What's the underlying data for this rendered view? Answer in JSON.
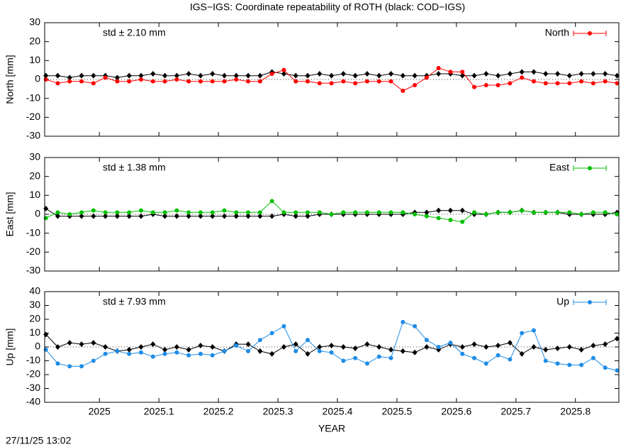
{
  "title": "IGS−IGS: Coordinate repeatability of ROTH (black: COD−IGS)",
  "timestamp": "27/11/25 13:02",
  "chart_data": [
    {
      "type": "line",
      "ylabel": "North [mm]",
      "annotation": "std ± 2.10 mm",
      "legend": "top right",
      "xlim": [
        2024.908,
        2025.873
      ],
      "ylim": [
        -30,
        30
      ],
      "yticks": [
        -30,
        -20,
        -10,
        0,
        10,
        20,
        30
      ],
      "x": [
        2024.91,
        2024.93,
        2024.95,
        2024.97,
        2024.99,
        2025.01,
        2025.03,
        2025.05,
        2025.07,
        2025.09,
        2025.11,
        2025.13,
        2025.15,
        2025.17,
        2025.19,
        2025.21,
        2025.23,
        2025.25,
        2025.27,
        2025.29,
        2025.31,
        2025.33,
        2025.35,
        2025.37,
        2025.39,
        2025.41,
        2025.43,
        2025.45,
        2025.47,
        2025.49,
        2025.51,
        2025.53,
        2025.55,
        2025.57,
        2025.59,
        2025.61,
        2025.63,
        2025.65,
        2025.67,
        2025.69,
        2025.71,
        2025.73,
        2025.75,
        2025.77,
        2025.79,
        2025.81,
        2025.83,
        2025.85,
        2025.87
      ],
      "series": [
        {
          "color": "#000000",
          "values": [
            2,
            2,
            1,
            2,
            2,
            2,
            1,
            2,
            2,
            3,
            2,
            2,
            3,
            2,
            3,
            2,
            2,
            2,
            2,
            4,
            3,
            2,
            2,
            3,
            2,
            3,
            2,
            3,
            2,
            3,
            2,
            2,
            2,
            3,
            3,
            2,
            2,
            3,
            2,
            3,
            4,
            4,
            3,
            3,
            2,
            3,
            3,
            3,
            2
          ]
        },
        {
          "name": "North",
          "color": "#ff0000",
          "values": [
            0,
            -2,
            -1,
            -1,
            -2,
            1,
            -1,
            -1,
            0,
            -1,
            -1,
            0,
            -1,
            -1,
            -1,
            -1,
            0,
            -1,
            -1,
            3,
            5,
            -1,
            -1,
            -2,
            -2,
            -1,
            -2,
            -1,
            -1,
            -1,
            -6,
            -3,
            1,
            6,
            4,
            4,
            -4,
            -3,
            -3,
            -2,
            1,
            -1,
            -2,
            -2,
            -2,
            -1,
            -2,
            -1,
            -2
          ]
        }
      ]
    },
    {
      "type": "line",
      "ylabel": "East [mm]",
      "annotation": "std ± 1.38 mm",
      "legend": "top right",
      "xlim": [
        2024.908,
        2025.873
      ],
      "ylim": [
        -30,
        30
      ],
      "yticks": [
        -30,
        -20,
        -10,
        0,
        10,
        20,
        30
      ],
      "x": [
        2024.91,
        2024.93,
        2024.95,
        2024.97,
        2024.99,
        2025.01,
        2025.03,
        2025.05,
        2025.07,
        2025.09,
        2025.11,
        2025.13,
        2025.15,
        2025.17,
        2025.19,
        2025.21,
        2025.23,
        2025.25,
        2025.27,
        2025.29,
        2025.31,
        2025.33,
        2025.35,
        2025.37,
        2025.39,
        2025.41,
        2025.43,
        2025.45,
        2025.47,
        2025.49,
        2025.51,
        2025.53,
        2025.55,
        2025.57,
        2025.59,
        2025.61,
        2025.63,
        2025.65,
        2025.67,
        2025.69,
        2025.71,
        2025.73,
        2025.75,
        2025.77,
        2025.79,
        2025.81,
        2025.83,
        2025.85,
        2025.87
      ],
      "series": [
        {
          "color": "#000000",
          "values": [
            3,
            -1,
            -1,
            -1,
            -1,
            -1,
            -1,
            -1,
            -1,
            0,
            -1,
            -1,
            -1,
            -1,
            -1,
            -1,
            -1,
            -1,
            -1,
            -1,
            0,
            -1,
            -1,
            0,
            0,
            0,
            0,
            0,
            0,
            0,
            0,
            1,
            1,
            2,
            2,
            2,
            0,
            0,
            1,
            1,
            2,
            1,
            1,
            1,
            0,
            0,
            0,
            0,
            1
          ]
        },
        {
          "name": "East",
          "color": "#00c000",
          "values": [
            -2,
            1,
            0,
            1,
            2,
            1,
            1,
            1,
            2,
            1,
            1,
            2,
            1,
            1,
            1,
            2,
            1,
            1,
            1,
            7,
            1,
            1,
            1,
            1,
            0,
            1,
            1,
            1,
            1,
            1,
            1,
            0,
            -1,
            -2,
            -3,
            -4,
            1,
            0,
            1,
            1,
            2,
            1,
            1,
            1,
            1,
            0,
            1,
            1,
            0
          ]
        }
      ]
    },
    {
      "type": "line",
      "ylabel": "Up [mm]",
      "annotation": "std ± 7.93 mm",
      "legend": "top right",
      "xlabel": "YEAR",
      "xlim": [
        2024.908,
        2025.873
      ],
      "xticks": [
        2025,
        2025.1,
        2025.2,
        2025.3,
        2025.4,
        2025.5,
        2025.6,
        2025.7,
        2025.8
      ],
      "ylim": [
        -40,
        40
      ],
      "yticks": [
        -40,
        -30,
        -20,
        -10,
        0,
        10,
        20,
        30,
        40
      ],
      "x": [
        2024.91,
        2024.93,
        2024.95,
        2024.97,
        2024.99,
        2025.01,
        2025.03,
        2025.05,
        2025.07,
        2025.09,
        2025.11,
        2025.13,
        2025.15,
        2025.17,
        2025.19,
        2025.21,
        2025.23,
        2025.25,
        2025.27,
        2025.29,
        2025.31,
        2025.33,
        2025.35,
        2025.37,
        2025.39,
        2025.41,
        2025.43,
        2025.45,
        2025.47,
        2025.49,
        2025.51,
        2025.53,
        2025.55,
        2025.57,
        2025.59,
        2025.61,
        2025.63,
        2025.65,
        2025.67,
        2025.69,
        2025.71,
        2025.73,
        2025.75,
        2025.77,
        2025.79,
        2025.81,
        2025.83,
        2025.85,
        2025.87
      ],
      "series": [
        {
          "color": "#000000",
          "values": [
            9,
            0,
            3,
            2,
            3,
            0,
            -3,
            -2,
            0,
            2,
            -2,
            0,
            -2,
            1,
            0,
            -3,
            2,
            2,
            -3,
            -5,
            0,
            2,
            -5,
            0,
            1,
            0,
            -1,
            2,
            0,
            -2,
            -3,
            -4,
            0,
            -2,
            2,
            0,
            2,
            0,
            1,
            3,
            -5,
            0,
            -2,
            -1,
            0,
            -2,
            1,
            2,
            6
          ]
        },
        {
          "name": "Up",
          "color": "#1e8ce6",
          "values": [
            -2,
            -12,
            -14,
            -14,
            -10,
            -5,
            -3,
            -5,
            -4,
            -7,
            -5,
            -4,
            -6,
            -5,
            -6,
            -3,
            1,
            -3,
            5,
            10,
            15,
            -3,
            5,
            -3,
            -4,
            -10,
            -8,
            -12,
            -7,
            -8,
            18,
            15,
            5,
            0,
            3,
            -5,
            -8,
            -12,
            -6,
            -9,
            10,
            12,
            -10,
            -12,
            -13,
            -13,
            -8,
            -15,
            -17
          ]
        }
      ]
    }
  ]
}
